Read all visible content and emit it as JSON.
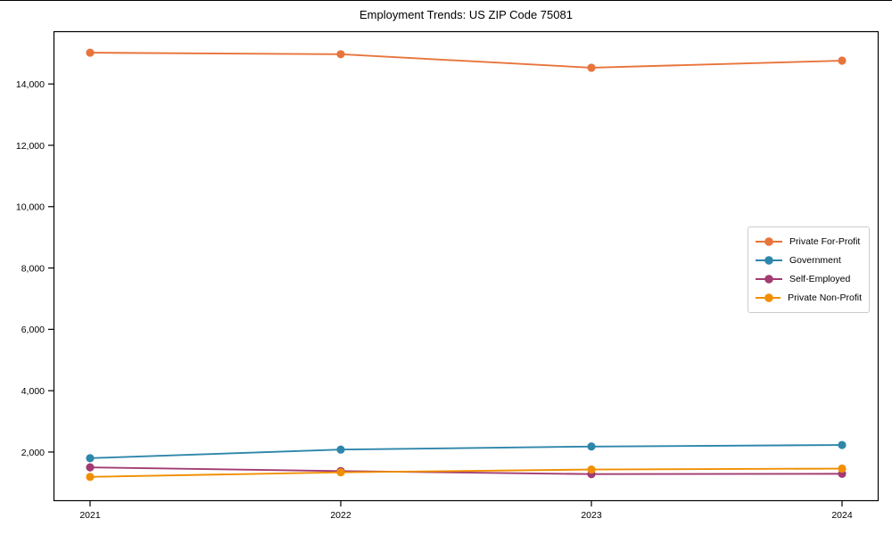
{
  "page_title": "Employment Trends: US ZIP Code 75081",
  "chart_data": {
    "type": "line",
    "title": "Employment Trends: US ZIP Code 75081",
    "x": [
      "2021",
      "2022",
      "2023",
      "2024"
    ],
    "xlabel": "",
    "ylabel": "",
    "ylim": [
      400,
      15720
    ],
    "yticks": [
      2000,
      4000,
      6000,
      8000,
      10000,
      12000,
      14000
    ],
    "grid": false,
    "legend_position": "right-middle",
    "marker": "circle",
    "background": "#ffffff",
    "axis_color": "#000000",
    "series": [
      {
        "name": "Private For-Profit",
        "color": "#e8743b",
        "values": [
          15020,
          14970,
          14530,
          14760
        ]
      },
      {
        "name": "Government",
        "color": "#2e86ab",
        "values": [
          1800,
          2080,
          2180,
          2230
        ]
      },
      {
        "name": "Self-Employed",
        "color": "#a23b72",
        "values": [
          1500,
          1380,
          1280,
          1290
        ]
      },
      {
        "name": "Private Non-Profit",
        "color": "#f18f01",
        "values": [
          1190,
          1340,
          1430,
          1460
        ]
      }
    ]
  }
}
